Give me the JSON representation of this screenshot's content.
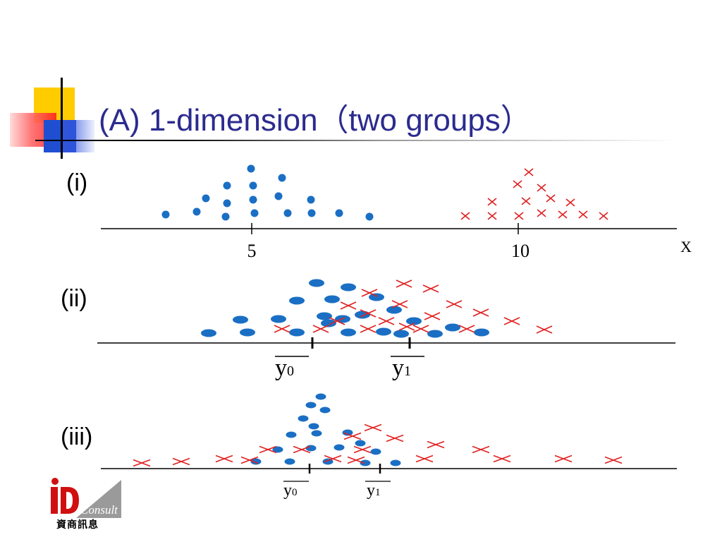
{
  "title": "(A)  1-dimension（two groups）",
  "panels": [
    {
      "label": "(i)",
      "axis_label": "X",
      "ticks": [
        {
          "x": 5,
          "label": "5"
        },
        {
          "x": 10,
          "label": "10"
        }
      ],
      "marker_labels": []
    },
    {
      "label": "(ii)",
      "axis_label": "",
      "ticks": [],
      "marker_labels": [
        {
          "main": "y",
          "sub": "0"
        },
        {
          "main": "y",
          "sub": "1"
        }
      ]
    },
    {
      "label": "(iii)",
      "axis_label": "",
      "ticks": [],
      "marker_labels": [
        {
          "main": "y",
          "sub": "0"
        },
        {
          "main": "y",
          "sub": "1"
        }
      ]
    }
  ],
  "colors": {
    "group0": "#1a6fc4",
    "group1": "#e02020",
    "title": "#2b2b8f"
  },
  "logo": {
    "text": "Consult",
    "caption": "資商訊息"
  }
}
